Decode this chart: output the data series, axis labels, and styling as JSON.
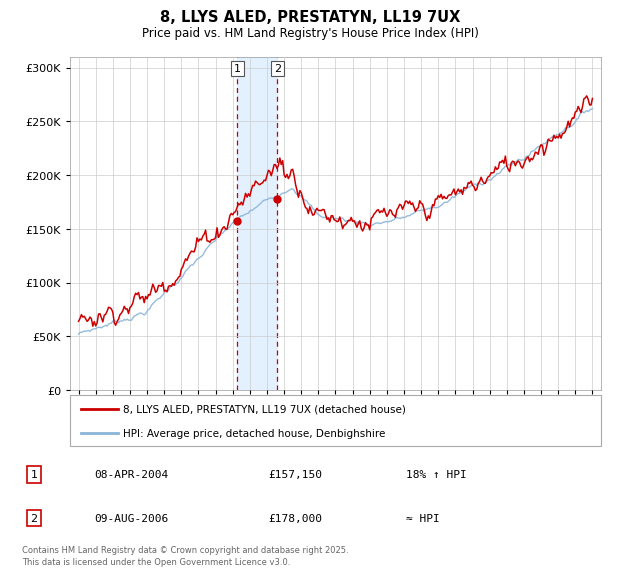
{
  "title": "8, LLYS ALED, PRESTATYN, LL19 7UX",
  "subtitle": "Price paid vs. HM Land Registry's House Price Index (HPI)",
  "legend_line1": "8, LLYS ALED, PRESTATYN, LL19 7UX (detached house)",
  "legend_line2": "HPI: Average price, detached house, Denbighshire",
  "table": [
    {
      "num": "1",
      "date": "08-APR-2004",
      "price": "£157,150",
      "rel": "18% ↑ HPI"
    },
    {
      "num": "2",
      "date": "09-AUG-2006",
      "price": "£178,000",
      "rel": "≈ HPI"
    }
  ],
  "footer": "Contains HM Land Registry data © Crown copyright and database right 2025.\nThis data is licensed under the Open Government Licence v3.0.",
  "sale1_x": 2004.27,
  "sale1_y": 157150,
  "sale2_x": 2006.61,
  "sale2_y": 178000,
  "hpi_color": "#8ab4d8",
  "price_color": "#cc0000",
  "shade_color": "#ddeeff",
  "vline_color": "#cc0000",
  "ylim": [
    0,
    310000
  ],
  "xlim_start": 1994.5,
  "xlim_end": 2025.5,
  "yticks": [
    0,
    50000,
    100000,
    150000,
    200000,
    250000,
    300000
  ],
  "bg_color": "#f5f5f5"
}
